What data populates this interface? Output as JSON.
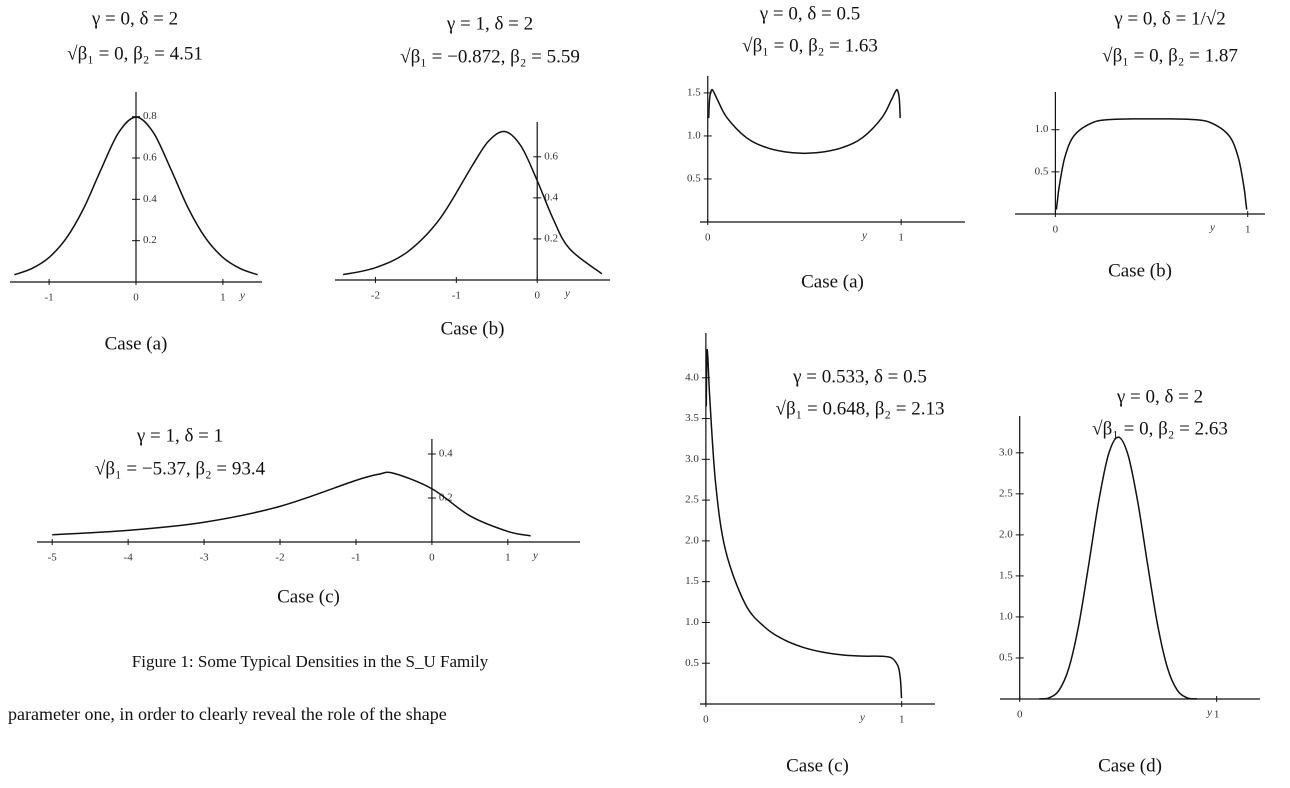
{
  "chart_data": [
    {
      "type": "line",
      "title": "γ = 0, δ = 2",
      "subtitle": "√β₁ = 0, β₂ = 4.51",
      "xlabel": "y",
      "case": "Case (a)",
      "xlim": [
        -1.45,
        1.45
      ],
      "ylim": [
        0,
        0.9
      ],
      "xticks": [
        -1,
        0,
        1
      ],
      "yticks": [
        0.2,
        0.4,
        0.6,
        0.8
      ],
      "x": [
        -1.4,
        -1.2,
        -1,
        -0.8,
        -0.6,
        -0.4,
        -0.2,
        0,
        0.2,
        0.4,
        0.6,
        0.8,
        1,
        1.2,
        1.4
      ],
      "values": [
        0.035,
        0.065,
        0.119,
        0.213,
        0.358,
        0.547,
        0.723,
        0.798,
        0.723,
        0.547,
        0.358,
        0.213,
        0.119,
        0.065,
        0.035
      ]
    },
    {
      "type": "line",
      "title": "γ = 1, δ = 2",
      "subtitle": "√β₁ = −0.872, β₂ = 5.59",
      "xlabel": "y",
      "case": "Case (b)",
      "xlim": [
        -2.5,
        0.9
      ],
      "ylim": [
        0,
        0.75
      ],
      "xticks": [
        -2,
        -1,
        0
      ],
      "yticks": [
        0.2,
        0.4,
        0.6
      ],
      "x": [
        -2.4,
        -2,
        -1.6,
        -1.2,
        -0.8,
        -0.6,
        -0.4,
        -0.2,
        0,
        0.2,
        0.4,
        0.8
      ],
      "values": [
        0.026,
        0.06,
        0.138,
        0.3,
        0.559,
        0.677,
        0.723,
        0.652,
        0.484,
        0.295,
        0.152,
        0.03
      ]
    },
    {
      "type": "line",
      "title": "γ = 1, δ = 1",
      "subtitle": "√β₁ = −5.37, β₂ = 93.4",
      "xlabel": "y",
      "case": "Case (c)",
      "xlim": [
        -5.2,
        1.95
      ],
      "ylim": [
        0,
        0.45
      ],
      "xticks": [
        -5,
        -4,
        -3,
        -2,
        -1,
        0,
        1
      ],
      "yticks": [
        0.2,
        0.4
      ],
      "x": [
        -5,
        -4,
        -3,
        -2,
        -1,
        -0.7,
        -0.5,
        0,
        0.5,
        1,
        1.3
      ],
      "values": [
        0.033,
        0.053,
        0.09,
        0.162,
        0.28,
        0.308,
        0.312,
        0.242,
        0.119,
        0.048,
        0.028
      ]
    },
    {
      "type": "line",
      "title": "γ = 0, δ = 0.5",
      "subtitle": "√β₁ = 0, β₂ = 1.63",
      "xlabel": "y",
      "case": "Case (a)",
      "xlim": [
        -0.04,
        1.33
      ],
      "ylim": [
        0,
        1.65
      ],
      "xticks": [
        0,
        1
      ],
      "yticks": [
        0.5,
        {
          "value": 1,
          "label": "1.0"
        },
        1.5
      ],
      "x": [
        0.005,
        0.01,
        0.02,
        0.03,
        0.05,
        0.1,
        0.2,
        0.3,
        0.4,
        0.5,
        0.6,
        0.7,
        0.8,
        0.9,
        0.95,
        0.97,
        0.98,
        0.99,
        0.995
      ],
      "values": [
        1.207,
        1.44,
        1.533,
        1.515,
        1.422,
        1.211,
        0.98,
        0.868,
        0.815,
        0.798,
        0.815,
        0.868,
        0.98,
        1.211,
        1.422,
        1.515,
        1.533,
        1.44,
        1.207
      ]
    },
    {
      "type": "line",
      "title": "γ = 0, δ = 1/√2",
      "subtitle": "√β₁ = 0, β₂ = 1.87",
      "xlabel": "y",
      "case": "Case (b)",
      "xlim": [
        -0.21,
        1.09
      ],
      "ylim": [
        0,
        1.4
      ],
      "xticks": [
        0,
        1
      ],
      "yticks": [
        0.5,
        {
          "value": 1,
          "label": "1.0"
        }
      ],
      "x": [
        0.005,
        0.01,
        0.02,
        0.05,
        0.1,
        0.2,
        0.3,
        0.4,
        0.5,
        0.6,
        0.7,
        0.8,
        0.9,
        0.95,
        0.98,
        0.99,
        0.995
      ],
      "values": [
        0.052,
        0.145,
        0.327,
        0.68,
        0.937,
        1.091,
        1.123,
        1.128,
        1.128,
        1.128,
        1.123,
        1.091,
        0.937,
        0.68,
        0.327,
        0.145,
        0.052
      ]
    },
    {
      "type": "line",
      "title": "γ = 0.533, δ = 0.5",
      "subtitle": "√β₁ = 0.648, β₂ = 2.13",
      "xlabel": "y",
      "case": "Case (c)",
      "xlim": [
        -0.03,
        1.17
      ],
      "ylim": [
        0,
        4.5
      ],
      "xticks": [
        0,
        1
      ],
      "yticks": [
        0.5,
        {
          "value": 1,
          "label": "1.0"
        },
        1.5,
        {
          "value": 2,
          "label": "2.0"
        },
        2.5,
        {
          "value": 3,
          "label": "3.0"
        },
        3.5,
        {
          "value": 4,
          "label": "4.0"
        }
      ],
      "x": [
        0.002,
        0.005,
        0.01,
        0.02,
        0.05,
        0.1,
        0.2,
        0.3,
        0.4,
        0.5,
        0.6,
        0.7,
        0.8,
        0.9,
        0.95,
        0.98,
        0.99,
        0.995,
        0.999
      ],
      "values": [
        3.65,
        4.29,
        4.25,
        3.75,
        2.7,
        1.889,
        1.231,
        0.944,
        0.787,
        0.692,
        0.634,
        0.601,
        0.587,
        0.585,
        0.563,
        0.471,
        0.369,
        0.255,
        0.072
      ]
    },
    {
      "type": "line",
      "title": "γ = 0, δ = 2",
      "subtitle": "√β₁ = 0, β₂ = 2.63",
      "xlabel": "y",
      "case": "Case (d)",
      "xlim": [
        -0.1,
        1.22
      ],
      "ylim": [
        0,
        3.4
      ],
      "xticks": [
        0,
        1
      ],
      "yticks": [
        0.5,
        {
          "value": 1,
          "label": "1.0"
        },
        1.5,
        {
          "value": 2,
          "label": "2.0"
        },
        2.5,
        {
          "value": 3,
          "label": "3.0"
        }
      ],
      "x": [
        0.1,
        0.15,
        0.2,
        0.25,
        0.3,
        0.35,
        0.4,
        0.45,
        0.5,
        0.55,
        0.6,
        0.65,
        0.7,
        0.75,
        0.8,
        0.85,
        0.9
      ],
      "values": [
        0.001,
        0.015,
        0.107,
        0.381,
        0.904,
        1.631,
        2.394,
        2.975,
        3.192,
        2.975,
        2.394,
        1.631,
        0.904,
        0.381,
        0.107,
        0.015,
        0.001
      ]
    }
  ],
  "caption": "Figure 1: Some Typical Densities in the S_U Family",
  "body_text": "parameter one, in order to clearly reveal the role of the shape"
}
